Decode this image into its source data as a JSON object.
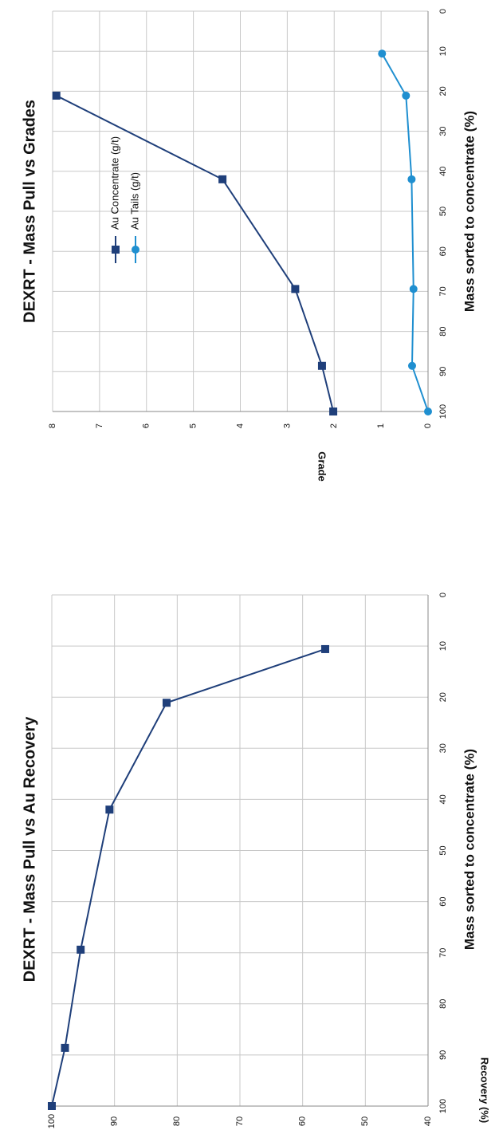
{
  "chart_data": [
    {
      "type": "line",
      "title": "DEXRT - Mass Pull vs Au Recovery",
      "xlabel": "Mass sorted to concentrate (%)",
      "ylabel": "Recovery (%)",
      "xlim": [
        0,
        100
      ],
      "ylim": [
        40,
        100
      ],
      "x_ticks": [
        "0",
        "10",
        "20",
        "30",
        "40",
        "50",
        "60",
        "70",
        "80",
        "90",
        "100"
      ],
      "y_ticks": [
        "40",
        "50",
        "60",
        "70",
        "80",
        "90",
        "100"
      ],
      "grid": true,
      "legend": "none",
      "series": [
        {
          "color": "#1f3f7a",
          "marker": "square",
          "x": [
            10.6,
            21.1,
            42.0,
            69.4,
            88.6,
            100
          ],
          "y": [
            56.4,
            81.7,
            90.8,
            95.4,
            97.9,
            100
          ]
        }
      ]
    },
    {
      "type": "line",
      "title": "DEXRT - Mass Pull vs Grades",
      "xlabel": "Mass sorted to concentrate (%)",
      "ylabel": "Grade",
      "xlim": [
        0,
        100
      ],
      "ylim": [
        0,
        8
      ],
      "x_ticks": [
        "0",
        "10",
        "20",
        "30",
        "40",
        "50",
        "60",
        "70",
        "80",
        "90",
        "100"
      ],
      "y_ticks": [
        "0",
        "1",
        "2",
        "3",
        "4",
        "5",
        "6",
        "7",
        "8"
      ],
      "grid": true,
      "legend": "top-left",
      "series": [
        {
          "name": "Au Concentrate  (g/t)",
          "color": "#1f3f7a",
          "marker": "square",
          "x": [
            21.1,
            42.0,
            69.4,
            88.6,
            100
          ],
          "y": [
            7.92,
            4.38,
            2.83,
            2.26,
            2.02
          ]
        },
        {
          "name": "Au Tails  (g/t)",
          "color": "#1f8fd0",
          "marker": "circle",
          "x": [
            10.6,
            21.1,
            42.0,
            69.4,
            88.6,
            100
          ],
          "y": [
            0.98,
            0.47,
            0.35,
            0.31,
            0.34,
            0
          ]
        }
      ]
    }
  ]
}
